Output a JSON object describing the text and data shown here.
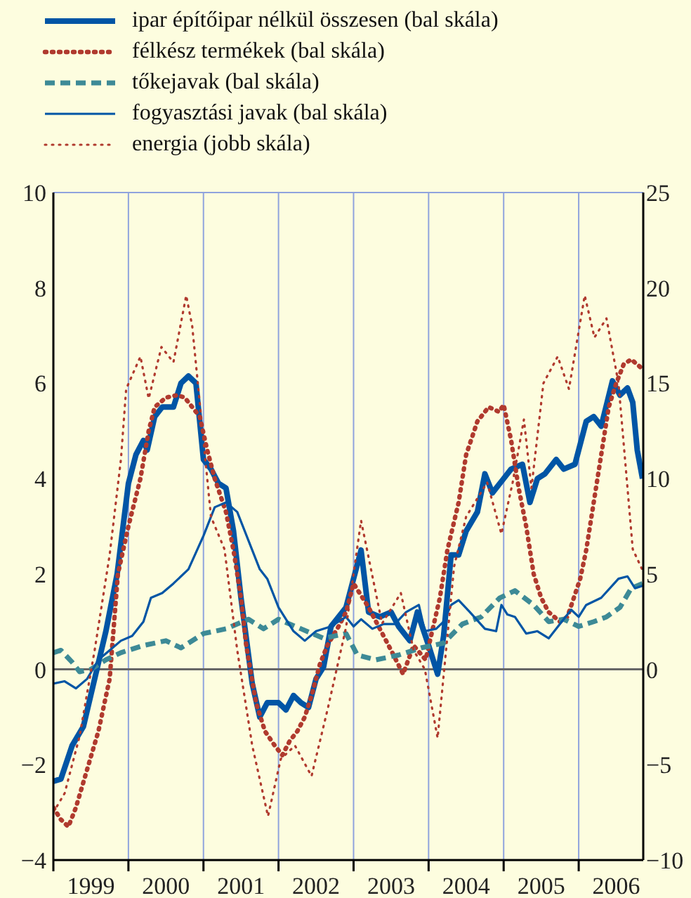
{
  "chart_data": {
    "type": "line",
    "legend": "top",
    "grid": true,
    "xlim": [
      1999,
      2006.86
    ],
    "xticks": [
      {
        "value": 1999,
        "label": null
      },
      {
        "value": 1999.5,
        "label": "1999"
      },
      {
        "value": 2000,
        "label": null
      },
      {
        "value": 2000.5,
        "label": "2000"
      },
      {
        "value": 2001,
        "label": null
      },
      {
        "value": 2001.5,
        "label": "2001"
      },
      {
        "value": 2002,
        "label": null
      },
      {
        "value": 2002.5,
        "label": "2002"
      },
      {
        "value": 2003,
        "label": null
      },
      {
        "value": 2003.5,
        "label": "2003"
      },
      {
        "value": 2004,
        "label": null
      },
      {
        "value": 2004.5,
        "label": "2004"
      },
      {
        "value": 2005,
        "label": null
      },
      {
        "value": 2005.5,
        "label": "2005"
      },
      {
        "value": 2006,
        "label": null
      },
      {
        "value": 2006.5,
        "label": "2006"
      }
    ],
    "ylim": [
      -4,
      10
    ],
    "yticks": [
      -4,
      -2,
      0,
      2,
      4,
      6,
      8,
      10
    ],
    "y2lim": [
      -10,
      25
    ],
    "y2ticks": [
      -10,
      -5,
      0,
      5,
      10,
      15,
      20,
      25
    ],
    "ref_lines": [
      {
        "axis": "y",
        "value": 0,
        "color": "#666666"
      }
    ],
    "series": [
      {
        "name": "ipar építőipar nélkül összesen (bal skála)",
        "color": "#0055a5",
        "line_style": "solid",
        "x": [
          1999.0,
          1999.1,
          1999.25,
          1999.4,
          1999.55,
          1999.7,
          1999.85,
          2000.0,
          2000.1,
          2000.2,
          2000.25,
          2000.35,
          2000.45,
          2000.6,
          2000.7,
          2000.8,
          2000.9,
          2001.0,
          2001.1,
          2001.2,
          2001.3,
          2001.4,
          2001.5,
          2001.65,
          2001.75,
          2001.85,
          2002.0,
          2002.1,
          2002.2,
          2002.3,
          2002.4,
          2002.5,
          2002.6,
          2002.7,
          2002.8,
          2002.9,
          2003.1,
          2003.2,
          2003.35,
          2003.5,
          2003.6,
          2003.75,
          2003.85,
          2004.0,
          2004.12,
          2004.2,
          2004.3,
          2004.4,
          2004.5,
          2004.65,
          2004.75,
          2004.85,
          2005.0,
          2005.1,
          2005.25,
          2005.35,
          2005.45,
          2005.55,
          2005.7,
          2005.8,
          2005.95,
          2006.1,
          2006.2,
          2006.3,
          2006.45,
          2006.55,
          2006.65,
          2006.72,
          2006.78,
          2006.85
        ],
        "values": [
          -2.35,
          -2.3,
          -1.6,
          -1.2,
          -0.2,
          0.8,
          2,
          3.9,
          4.5,
          4.8,
          4.6,
          5.3,
          5.5,
          5.5,
          6.0,
          6.15,
          6.0,
          4.4,
          4.2,
          3.9,
          3.8,
          2.9,
          1.5,
          -0.3,
          -1.0,
          -0.7,
          -0.7,
          -0.85,
          -0.55,
          -0.7,
          -0.8,
          -0.2,
          0.05,
          0.9,
          1.1,
          1.3,
          2.5,
          1.2,
          1.1,
          1.2,
          0.9,
          0.6,
          1.2,
          0.5,
          -0.1,
          0.7,
          2.4,
          2.4,
          2.9,
          3.3,
          4.1,
          3.7,
          4.0,
          4.2,
          4.3,
          3.5,
          4.0,
          4.1,
          4.4,
          4.2,
          4.3,
          5.2,
          5.3,
          5.1,
          6.05,
          5.75,
          5.9,
          5.6,
          4.6,
          4.0
        ]
      },
      {
        "name": "félkész termékek (bal skála)",
        "color": "#b03a2e",
        "line_style": "dotted",
        "x": [
          1999.0,
          1999.1,
          1999.2,
          1999.3,
          1999.45,
          1999.6,
          1999.75,
          1999.86,
          2000.0,
          2000.16,
          2000.27,
          2000.35,
          2000.5,
          2000.65,
          2000.75,
          2000.85,
          2000.95,
          2001.05,
          2001.15,
          2001.3,
          2001.4,
          2001.5,
          2001.57,
          2001.7,
          2001.82,
          2001.95,
          2002.05,
          2002.15,
          2002.25,
          2002.35,
          2002.45,
          2002.55,
          2002.65,
          2002.8,
          2002.9,
          2003.0,
          2003.2,
          2003.5,
          2003.66,
          2003.8,
          2003.96,
          2004.15,
          2004.25,
          2004.4,
          2004.5,
          2004.65,
          2004.8,
          2004.94,
          2005.0,
          2005.1,
          2005.2,
          2005.3,
          2005.4,
          2005.5,
          2005.6,
          2005.75,
          2005.85,
          2006.02,
          2006.1,
          2006.2,
          2006.3,
          2006.4,
          2006.5,
          2006.6,
          2006.7,
          2006.85
        ],
        "values": [
          -2.9,
          -3.15,
          -3.3,
          -2.9,
          -2.1,
          -1.3,
          -0.2,
          2,
          3,
          4,
          5,
          5.5,
          5.7,
          5.75,
          5.7,
          5.5,
          5.3,
          4.6,
          4.0,
          3.3,
          2.5,
          1.5,
          0.5,
          -0.7,
          -1.3,
          -1.6,
          -1.8,
          -1.5,
          -1.3,
          -1.0,
          -0.5,
          0.1,
          0.5,
          0.9,
          1.2,
          1.8,
          1.3,
          0.4,
          -0.1,
          0.5,
          0.2,
          1.5,
          2.5,
          3.5,
          4.5,
          5.2,
          5.5,
          5.4,
          5.55,
          4.8,
          3.8,
          3.0,
          2.0,
          1.5,
          1.2,
          1.0,
          1.1,
          1.9,
          2.5,
          3.5,
          4.5,
          5.5,
          6.0,
          6.4,
          6.5,
          6.3
        ]
      },
      {
        "name": "tőkejavak (bal skála)",
        "color": "#3d8a96",
        "line_style": "dashed",
        "x": [
          1999.0,
          1999.1,
          1999.25,
          1999.35,
          1999.5,
          1999.7,
          1999.9,
          2000.2,
          2000.5,
          2000.7,
          2001.0,
          2001.3,
          2001.6,
          2001.8,
          2002.0,
          2002.3,
          2002.6,
          2002.9,
          2003.05,
          2003.3,
          2003.6,
          2003.9,
          2004.2,
          2004.45,
          2004.7,
          2004.95,
          2005.15,
          2005.4,
          2005.6,
          2005.8,
          2006.0,
          2006.2,
          2006.37,
          2006.55,
          2006.7,
          2006.85
        ],
        "values": [
          0.35,
          0.4,
          0.15,
          -0.05,
          0.0,
          0.2,
          0.35,
          0.5,
          0.6,
          0.45,
          0.75,
          0.85,
          1.05,
          0.85,
          1.05,
          0.85,
          0.65,
          0.75,
          0.3,
          0.2,
          0.3,
          0.45,
          0.55,
          0.95,
          1.1,
          1.5,
          1.65,
          1.35,
          1.0,
          1.05,
          0.9,
          1.0,
          1.1,
          1.3,
          1.7,
          1.8
        ]
      },
      {
        "name": "fogyasztási javak (bal skála)",
        "color": "#0055a5",
        "line_style": "solid",
        "x": [
          1999.0,
          1999.15,
          1999.3,
          1999.45,
          1999.6,
          1999.75,
          1999.9,
          2000.05,
          2000.2,
          2000.3,
          2000.45,
          2000.6,
          2000.8,
          2001.0,
          2001.15,
          2001.3,
          2001.45,
          2001.6,
          2001.75,
          2001.85,
          2002.0,
          2002.2,
          2002.35,
          2002.5,
          2002.7,
          2002.9,
          2003.0,
          2003.1,
          2003.25,
          2003.4,
          2003.55,
          2003.7,
          2003.87,
          2003.95,
          2004.1,
          2004.2,
          2004.3,
          2004.4,
          2004.55,
          2004.75,
          2004.9,
          2004.97,
          2005.05,
          2005.15,
          2005.3,
          2005.45,
          2005.6,
          2005.75,
          2005.9,
          2006.0,
          2006.1,
          2006.3,
          2006.53,
          2006.65,
          2006.75,
          2006.85
        ],
        "values": [
          -0.3,
          -0.25,
          -0.4,
          -0.2,
          0.2,
          0.4,
          0.6,
          0.7,
          1.0,
          1.5,
          1.6,
          1.8,
          2.1,
          2.8,
          3.4,
          3.5,
          3.3,
          2.7,
          2.1,
          1.9,
          1.3,
          0.8,
          0.6,
          0.8,
          0.9,
          1.1,
          0.9,
          1.05,
          0.85,
          0.95,
          0.95,
          1.2,
          1.35,
          0.8,
          0.85,
          1.0,
          1.35,
          1.45,
          1.2,
          0.85,
          0.8,
          1.35,
          1.15,
          1.1,
          0.75,
          0.8,
          0.65,
          0.95,
          1.25,
          1.1,
          1.35,
          1.5,
          1.9,
          1.95,
          1.7,
          1.75
        ]
      },
      {
        "name": "energia (jobb skála)",
        "color": "#b03a2e",
        "line_style": "dotted",
        "axis": "y2",
        "x": [
          1999.0,
          1999.15,
          1999.35,
          1999.55,
          1999.75,
          1999.9,
          1999.97,
          2000.16,
          2000.27,
          2000.44,
          2000.6,
          2000.77,
          2000.85,
          2000.94,
          2001.1,
          2001.28,
          2001.45,
          2001.65,
          2001.86,
          2002.03,
          2002.22,
          2002.44,
          2002.66,
          2002.9,
          2003.1,
          2003.38,
          2003.63,
          2003.8,
          2003.95,
          2004.12,
          2004.34,
          2004.5,
          2004.78,
          2004.97,
          2005.12,
          2005.27,
          2005.37,
          2005.53,
          2005.72,
          2005.87,
          2006.08,
          2006.21,
          2006.37,
          2006.53,
          2006.72,
          2006.85
        ],
        "values": [
          -7.5,
          -6.5,
          -3.5,
          1,
          6,
          11,
          14.7,
          16.4,
          14.2,
          16.9,
          16.1,
          19.6,
          18,
          14.4,
          8,
          6.3,
          1,
          -4,
          -7.7,
          -4.7,
          -4.0,
          -5.6,
          -2,
          2.2,
          7.8,
          2.4,
          4.0,
          1,
          0,
          -3.6,
          5.4,
          8,
          9.8,
          7.1,
          9.8,
          13.1,
          9.5,
          15.0,
          16.4,
          14.7,
          19.6,
          17.4,
          18.4,
          15.0,
          6.3,
          5.2
        ]
      }
    ]
  }
}
